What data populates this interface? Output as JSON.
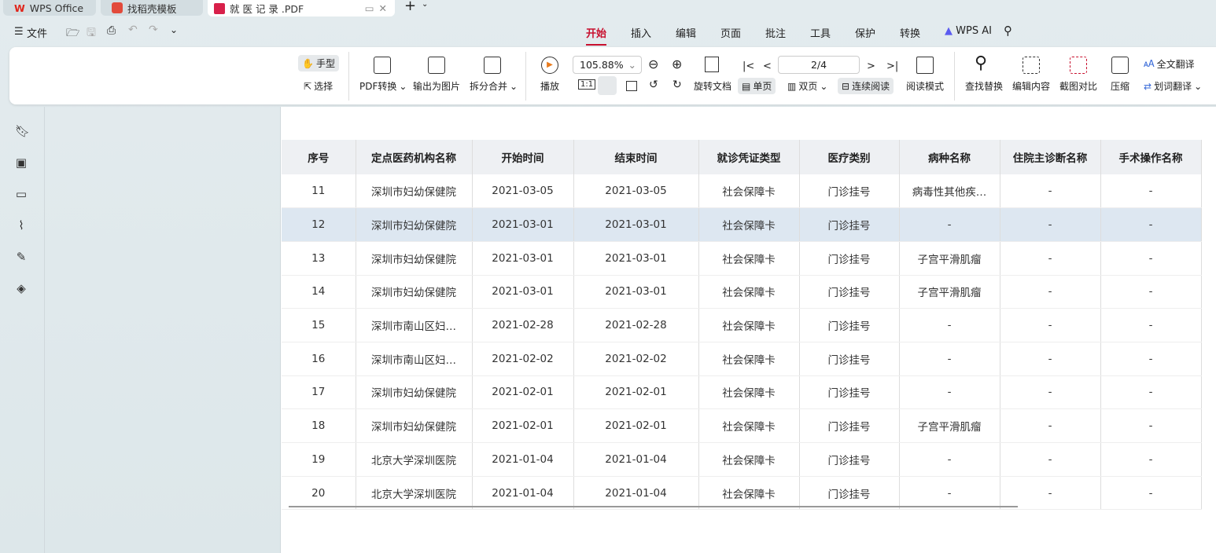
{
  "tabs": [
    {
      "label": "WPS Office",
      "icon": "wps-logo"
    },
    {
      "label": "找稻壳模板",
      "icon": "docer-logo"
    },
    {
      "label": "就 医 记 录 .PDF",
      "icon": "pdf-icon",
      "active": true
    }
  ],
  "quickbar": {
    "file": "文件"
  },
  "menu": [
    "开始",
    "插入",
    "编辑",
    "页面",
    "批注",
    "工具",
    "保护",
    "转换",
    "WPS AI"
  ],
  "toolbar": {
    "hand": "手型",
    "select": "选择",
    "pdf_convert": "PDF转换",
    "export_image": "输出为图片",
    "split_merge": "拆分合并",
    "play": "播放",
    "zoom": "105.88%",
    "page": "2/4",
    "rotate": "旋转文档",
    "single": "单页",
    "double": "双页",
    "continuous": "连续阅读",
    "read_mode": "阅读模式",
    "find_replace": "查找替换",
    "edit_content": "编辑内容",
    "screenshot_compare": "截图对比",
    "compress": "压缩",
    "full_translate": "全文翻译",
    "word_translate": "划词翻译"
  },
  "table": {
    "headers": [
      "序号",
      "定点医药机构名称",
      "开始时间",
      "结束时间",
      "就诊凭证类型",
      "医疗类别",
      "病种名称",
      "住院主诊断名称",
      "手术操作名称"
    ],
    "rows": [
      [
        "11",
        "深圳市妇幼保健院",
        "2021-03-05",
        "2021-03-05",
        "社会保障卡",
        "门诊挂号",
        "病毒性其他疾…",
        "-",
        "-"
      ],
      [
        "12",
        "深圳市妇幼保健院",
        "2021-03-01",
        "2021-03-01",
        "社会保障卡",
        "门诊挂号",
        "-",
        "-",
        "-"
      ],
      [
        "13",
        "深圳市妇幼保健院",
        "2021-03-01",
        "2021-03-01",
        "社会保障卡",
        "门诊挂号",
        "子宫平滑肌瘤",
        "-",
        "-"
      ],
      [
        "14",
        "深圳市妇幼保健院",
        "2021-03-01",
        "2021-03-01",
        "社会保障卡",
        "门诊挂号",
        "子宫平滑肌瘤",
        "-",
        "-"
      ],
      [
        "15",
        "深圳市南山区妇…",
        "2021-02-28",
        "2021-02-28",
        "社会保障卡",
        "门诊挂号",
        "-",
        "-",
        "-"
      ],
      [
        "16",
        "深圳市南山区妇…",
        "2021-02-02",
        "2021-02-02",
        "社会保障卡",
        "门诊挂号",
        "-",
        "-",
        "-"
      ],
      [
        "17",
        "深圳市妇幼保健院",
        "2021-02-01",
        "2021-02-01",
        "社会保障卡",
        "门诊挂号",
        "-",
        "-",
        "-"
      ],
      [
        "18",
        "深圳市妇幼保健院",
        "2021-02-01",
        "2021-02-01",
        "社会保障卡",
        "门诊挂号",
        "子宫平滑肌瘤",
        "-",
        "-"
      ],
      [
        "19",
        "北京大学深圳医院",
        "2021-01-04",
        "2021-01-04",
        "社会保障卡",
        "门诊挂号",
        "-",
        "-",
        "-"
      ],
      [
        "20",
        "北京大学深圳医院",
        "2021-01-04",
        "2021-01-04",
        "社会保障卡",
        "门诊挂号",
        "-",
        "-",
        "-"
      ]
    ],
    "selected_row": 1
  },
  "colors": {
    "accent": "#c8102e",
    "selected_row": "#dde7f1"
  }
}
